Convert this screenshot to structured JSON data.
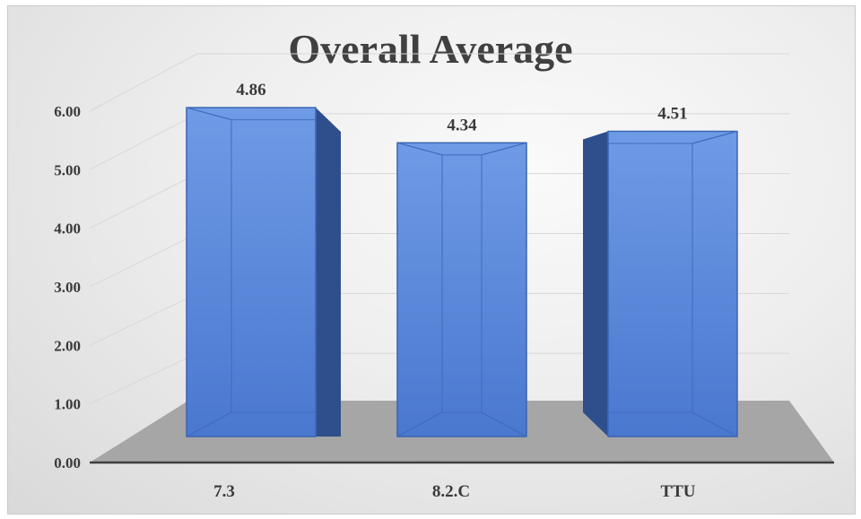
{
  "chart_data": {
    "type": "bar",
    "title": "Overall Average",
    "categories": [
      "7.3",
      "8.2.C",
      "TTU"
    ],
    "values": [
      4.86,
      4.34,
      4.51
    ],
    "data_labels": [
      "4.86",
      "4.34",
      "4.51"
    ],
    "ylim": [
      0,
      6
    ],
    "yticks": [
      "0.00",
      "1.00",
      "2.00",
      "3.00",
      "4.00",
      "5.00",
      "6.00"
    ],
    "xlabel": "",
    "ylabel": "",
    "grid": true,
    "style": "3d-column",
    "colors": {
      "bar": "#4f7fd6",
      "bar_light": "#6f9ae6",
      "bar_side": "#2e4f8c",
      "floor": "#a6a6a6",
      "text": "#3a3a3a"
    }
  }
}
